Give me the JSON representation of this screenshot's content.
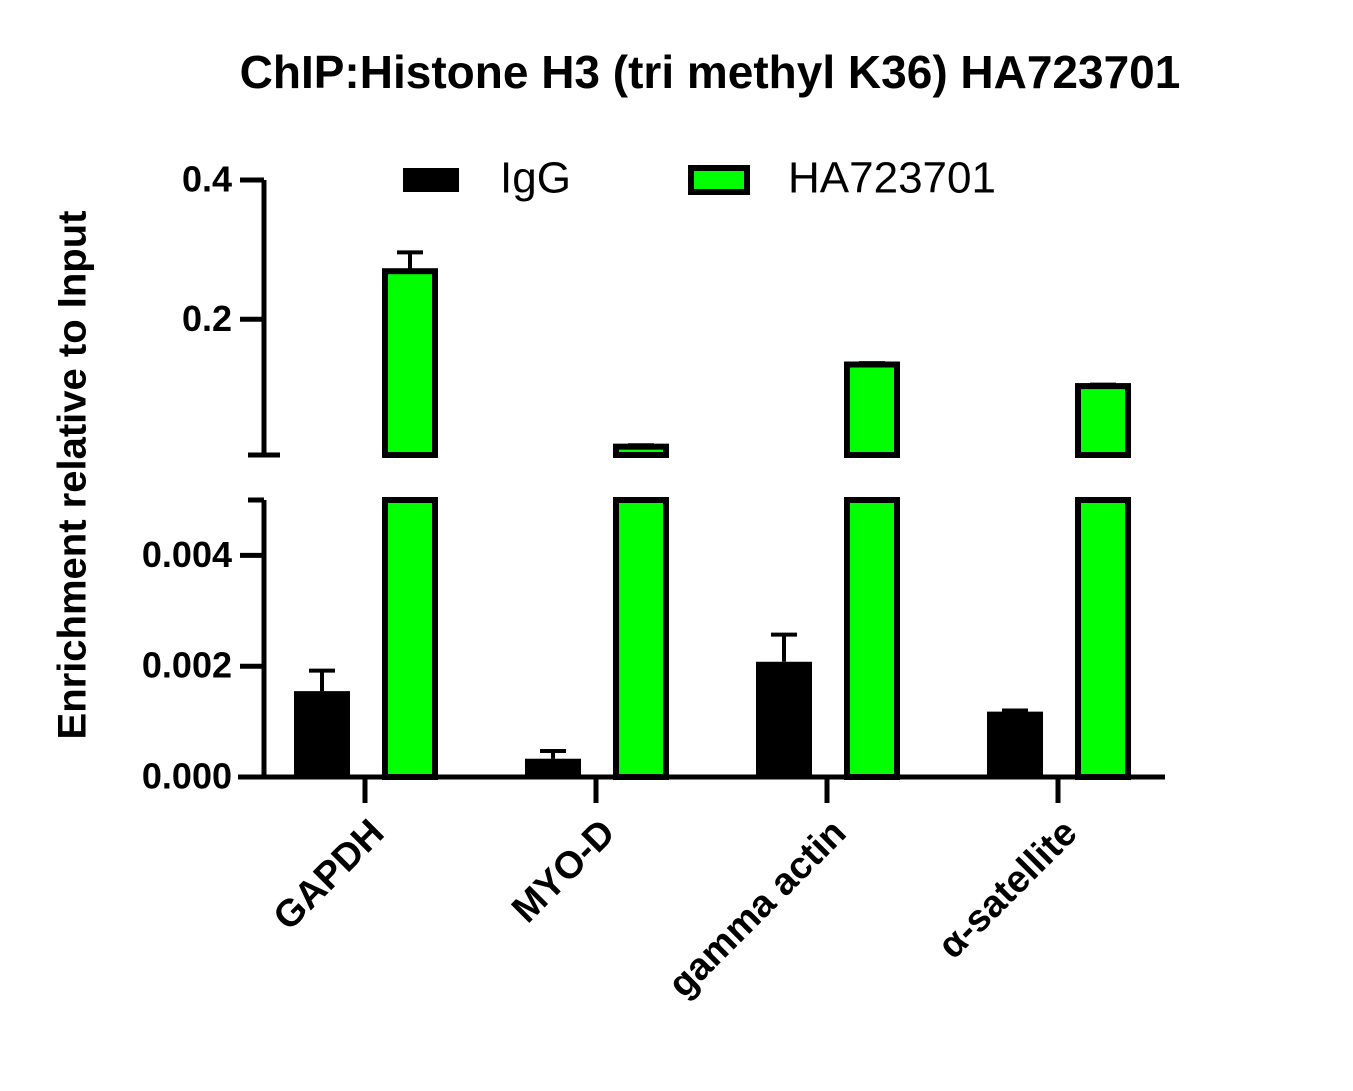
{
  "chart_data": {
    "type": "bar",
    "title": "ChIP:Histone H3 (tri methyl K36) HA723701",
    "ylabel": "Enrichment relative to Input",
    "categories": [
      "GAPDH",
      "MYO-D",
      "gamma actin",
      "α-satellite"
    ],
    "series": [
      {
        "name": "IgG",
        "color": "#000000",
        "edgecolor": "#000000",
        "values": [
          0.00155,
          0.00033,
          0.00208,
          0.00118
        ],
        "errors": [
          0.00037,
          0.00014,
          0.00049,
          2e-05
        ]
      },
      {
        "name": "HA723701",
        "color": "#00ff00",
        "edgecolor": "#000000",
        "values": [
          0.269,
          0.017,
          0.135,
          0.104
        ],
        "errors": [
          0.027,
          0.002,
          0.002,
          0.002
        ]
      }
    ],
    "ylim": [
      0,
      0.4
    ],
    "y_segments": [
      [
        0,
        0.005
      ],
      [
        0.005,
        0.4
      ]
    ],
    "yticks": [
      {
        "value": 0,
        "label": "0.000"
      },
      0.002,
      0.004,
      0.2,
      0.4
    ],
    "grid": false,
    "legend": "top"
  }
}
